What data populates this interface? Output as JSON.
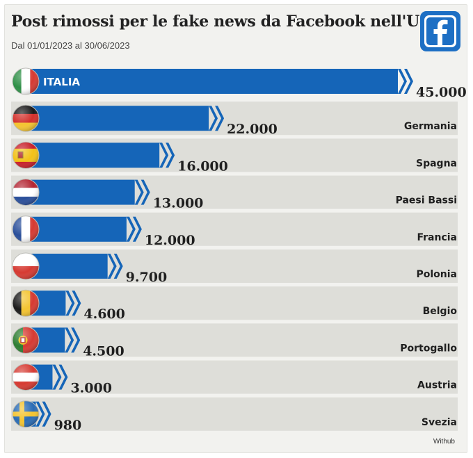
{
  "header": {
    "title": "Post rimossi per le fake news da Facebook nell'Ue",
    "subtitle": "Dal 01/01/2023 al 30/06/2023",
    "logo_icon": "facebook-logo-icon"
  },
  "footer": {
    "source": "Withub"
  },
  "colors": {
    "bar": "#1565b8",
    "row_band": "#deded9",
    "background": "#f2f2ef",
    "logo": "#1d6fc4"
  },
  "chart_data": {
    "type": "bar",
    "orientation": "horizontal",
    "title": "Post rimossi per le fake news da Facebook nell'Ue",
    "subtitle": "Dal 01/01/2023 al 30/06/2023",
    "categories": [
      "Italia",
      "Germania",
      "Spagna",
      "Paesi Bassi",
      "Francia",
      "Polonia",
      "Belgio",
      "Portogallo",
      "Austria",
      "Svezia"
    ],
    "values": [
      45000,
      22000,
      16000,
      13000,
      12000,
      9700,
      4600,
      4500,
      3000,
      980
    ],
    "value_labels": [
      "45.000",
      "22.000",
      "16.000",
      "13.000",
      "12.000",
      "9.700",
      "4.600",
      "4.500",
      "3.000",
      "980"
    ],
    "highlight_label": "ITALIA",
    "flag_icons": [
      "italy-flag-icon",
      "germany-flag-icon",
      "spain-flag-icon",
      "netherlands-flag-icon",
      "france-flag-icon",
      "poland-flag-icon",
      "belgium-flag-icon",
      "portugal-flag-icon",
      "austria-flag-icon",
      "sweden-flag-icon"
    ],
    "xlim": [
      0,
      45000
    ],
    "grid": false,
    "legend": "none"
  }
}
